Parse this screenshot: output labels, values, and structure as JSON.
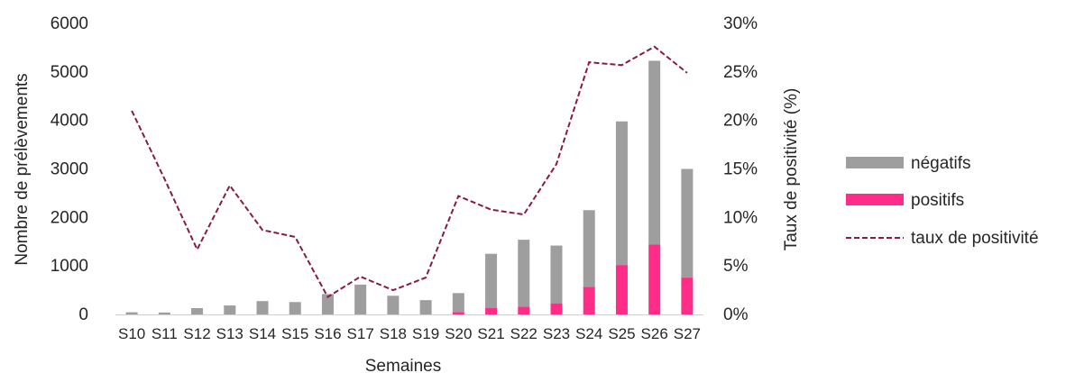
{
  "chart_data": {
    "type": "bar",
    "stacked": true,
    "categories": [
      "S10",
      "S11",
      "S12",
      "S13",
      "S14",
      "S15",
      "S16",
      "S17",
      "S18",
      "S19",
      "S20",
      "S21",
      "S22",
      "S23",
      "S24",
      "S25",
      "S26",
      "S27"
    ],
    "series": [
      {
        "name": "négatifs",
        "color": "#9e9e9e",
        "values": [
          45,
          40,
          130,
          185,
          275,
          255,
          420,
          615,
          385,
          295,
          390,
          1120,
          1380,
          1190,
          1580,
          2960,
          3790,
          2240
        ]
      },
      {
        "name": "positifs",
        "color": "#ff2d87",
        "values": [
          0,
          0,
          0,
          0,
          0,
          0,
          0,
          0,
          0,
          0,
          50,
          130,
          160,
          230,
          570,
          1020,
          1440,
          760
        ]
      },
      {
        "name": "taux de positivité",
        "color": "#8b1a3c",
        "axis": "right",
        "line_style": "dashed",
        "values": [
          21.0,
          14.0,
          6.7,
          13.3,
          8.7,
          8.0,
          1.8,
          3.9,
          2.5,
          3.8,
          12.2,
          10.8,
          10.3,
          15.5,
          26.0,
          25.7,
          27.6,
          24.9
        ]
      }
    ],
    "xlabel": "Semaines",
    "ylabel": "Nombre de prélèvements",
    "y2label": "Taux de positivité (%)",
    "ylim": [
      0,
      6000
    ],
    "yticks": [
      "0",
      "1000",
      "2000",
      "3000",
      "4000",
      "5000",
      "6000"
    ],
    "y2lim": [
      0,
      30
    ],
    "y2ticks": [
      "0%",
      "5%",
      "10%",
      "15%",
      "20%",
      "25%",
      "30%"
    ],
    "grid": false,
    "legend": "right"
  },
  "legend": {
    "neg_label": "négatifs",
    "pos_label": "positifs",
    "rate_label": "taux de positivité"
  }
}
